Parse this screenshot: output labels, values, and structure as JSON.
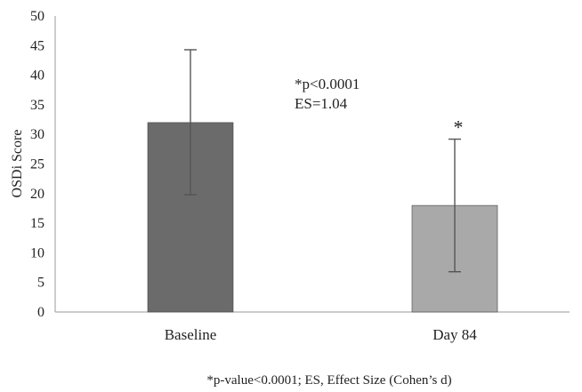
{
  "chart_data": {
    "type": "bar",
    "categories": [
      "Baseline",
      "Day 84"
    ],
    "values": [
      32,
      18
    ],
    "error_high": [
      44.3,
      29.2
    ],
    "error_low": [
      19.8,
      6.8
    ],
    "ylabel": "OSDi Score",
    "ylim": [
      0,
      50
    ],
    "yticks": [
      0,
      5,
      10,
      15,
      20,
      25,
      30,
      35,
      40,
      45,
      50
    ],
    "grid": false,
    "bar_colors": [
      "#6b6b6b",
      "#a9a9a9"
    ],
    "error_bar_color": "#555555",
    "annotations": [
      "*p<0.0001",
      "ES=1.04"
    ],
    "significance_marker": "*",
    "significance_category": "Day 84",
    "footnote": "*p-value<0.0001; ES, Effect Size (Cohen’s d)"
  }
}
